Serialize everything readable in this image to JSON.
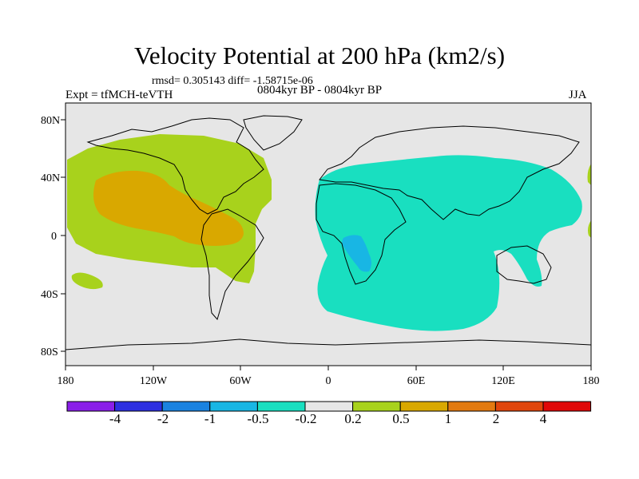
{
  "title": "Velocity Potential at 200 hPa (km2/s)",
  "stats": "rmsd= 0.305143 diff= -1.58715e-06",
  "left_label": "Expt = tfMCH-teVTH",
  "center_label": "0804kyr BP - 0804kyr BP",
  "right_label": "JJA",
  "lat_ticks": [
    "80N",
    "40N",
    "0",
    "40S",
    "80S"
  ],
  "lon_ticks": [
    "180",
    "120W",
    "60W",
    "0",
    "60E",
    "120E",
    "180"
  ],
  "colors": {
    "background": "#e6e6e6",
    "positive_weak": "#a8d21c",
    "positive_mid": "#d9a800",
    "negative_weak": "#19dfc0",
    "negative_mid": "#18b6e4",
    "coast": "#000000"
  },
  "colorbar": {
    "labels": [
      "-4",
      "-2",
      "-1",
      "-0.5",
      "-0.2",
      "0.2",
      "0.5",
      "1",
      "2",
      "4"
    ],
    "colors": [
      "#8a1ee8",
      "#2d2fe0",
      "#1a82e0",
      "#18b6e4",
      "#19dfc0",
      "#e6e6e6",
      "#a8d21c",
      "#d9a800",
      "#e27a10",
      "#e0460c",
      "#e00808"
    ]
  }
}
